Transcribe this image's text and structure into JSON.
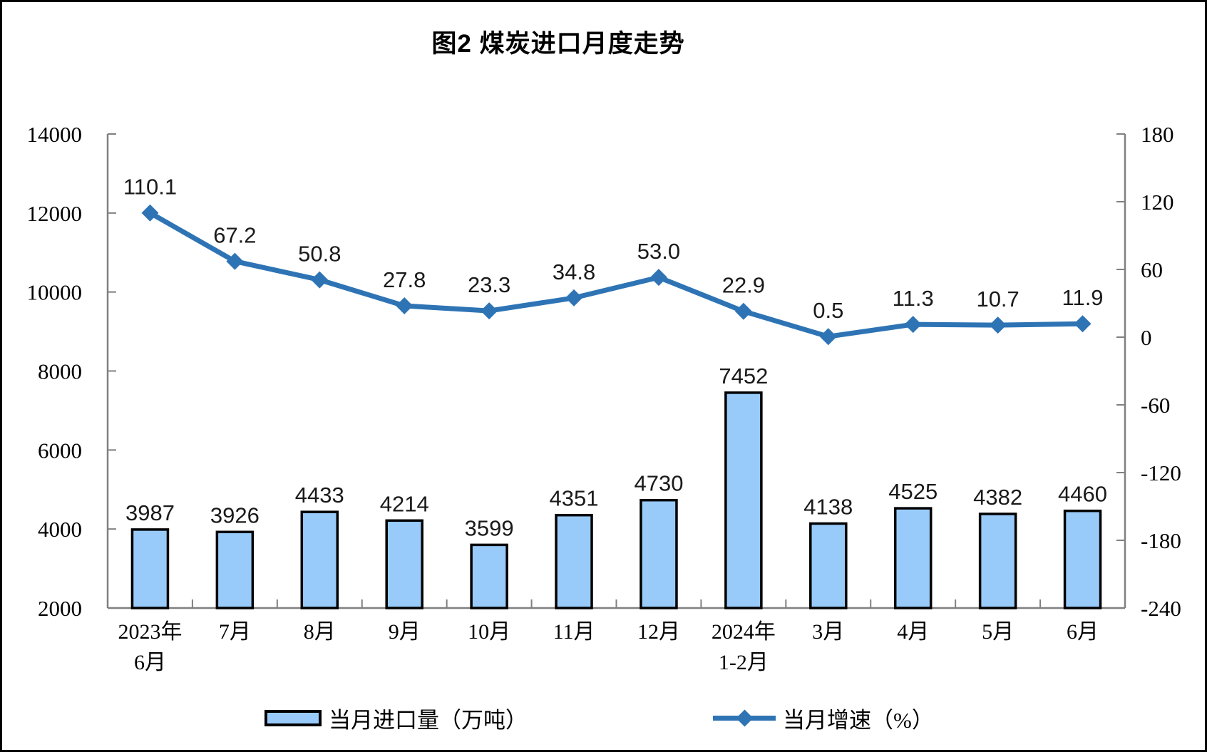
{
  "title": "图2  煤炭进口月度走势",
  "colors": {
    "bar_fill": "#99CBFA",
    "bar_border": "#000000",
    "line": "#2E74B5",
    "axis": "#808080",
    "text": "#000000",
    "background": "#FFFFFF"
  },
  "chart_data": {
    "type": "bar+line combo",
    "title": "图2  煤炭进口月度走势",
    "categories": [
      "2023年\n6月",
      "7月",
      "8月",
      "9月",
      "10月",
      "11月",
      "12月",
      "2024年\n1-2月",
      "3月",
      "4月",
      "5月",
      "6月"
    ],
    "series": [
      {
        "name": "当月进口量（万吨）",
        "type": "bar",
        "axis": "left",
        "values": [
          3987,
          3926,
          4433,
          4214,
          3599,
          4351,
          4730,
          7452,
          4138,
          4525,
          4382,
          4460
        ],
        "labels": [
          "3987",
          "3926",
          "4433",
          "4214",
          "3599",
          "4351",
          "4730",
          "7452",
          "4138",
          "4525",
          "4382",
          "4460"
        ],
        "fill": "#99CBFA",
        "stroke": "#000000"
      },
      {
        "name": "当月增速（%）",
        "type": "line",
        "axis": "right",
        "values": [
          110.1,
          67.2,
          50.8,
          27.8,
          23.3,
          34.8,
          53.0,
          22.9,
          0.5,
          11.3,
          10.7,
          11.9
        ],
        "labels": [
          "110.1",
          "67.2",
          "50.8",
          "27.8",
          "23.3",
          "34.8",
          "53.0",
          "22.9",
          "0.5",
          "11.3",
          "10.7",
          "11.9"
        ],
        "color": "#2E74B5"
      }
    ],
    "left_axis": {
      "min": 2000,
      "max": 14000,
      "step": 2000,
      "tick_labels": [
        "2000",
        "4000",
        "6000",
        "8000",
        "10000",
        "12000",
        "14000"
      ]
    },
    "right_axis": {
      "min": -240,
      "max": 180,
      "step": 60,
      "tick_labels": [
        "-240",
        "-180",
        "-120",
        "-60",
        "0",
        "60",
        "120",
        "180"
      ]
    },
    "axis_color": "#808080",
    "grid": false,
    "legend_position": "bottom"
  }
}
